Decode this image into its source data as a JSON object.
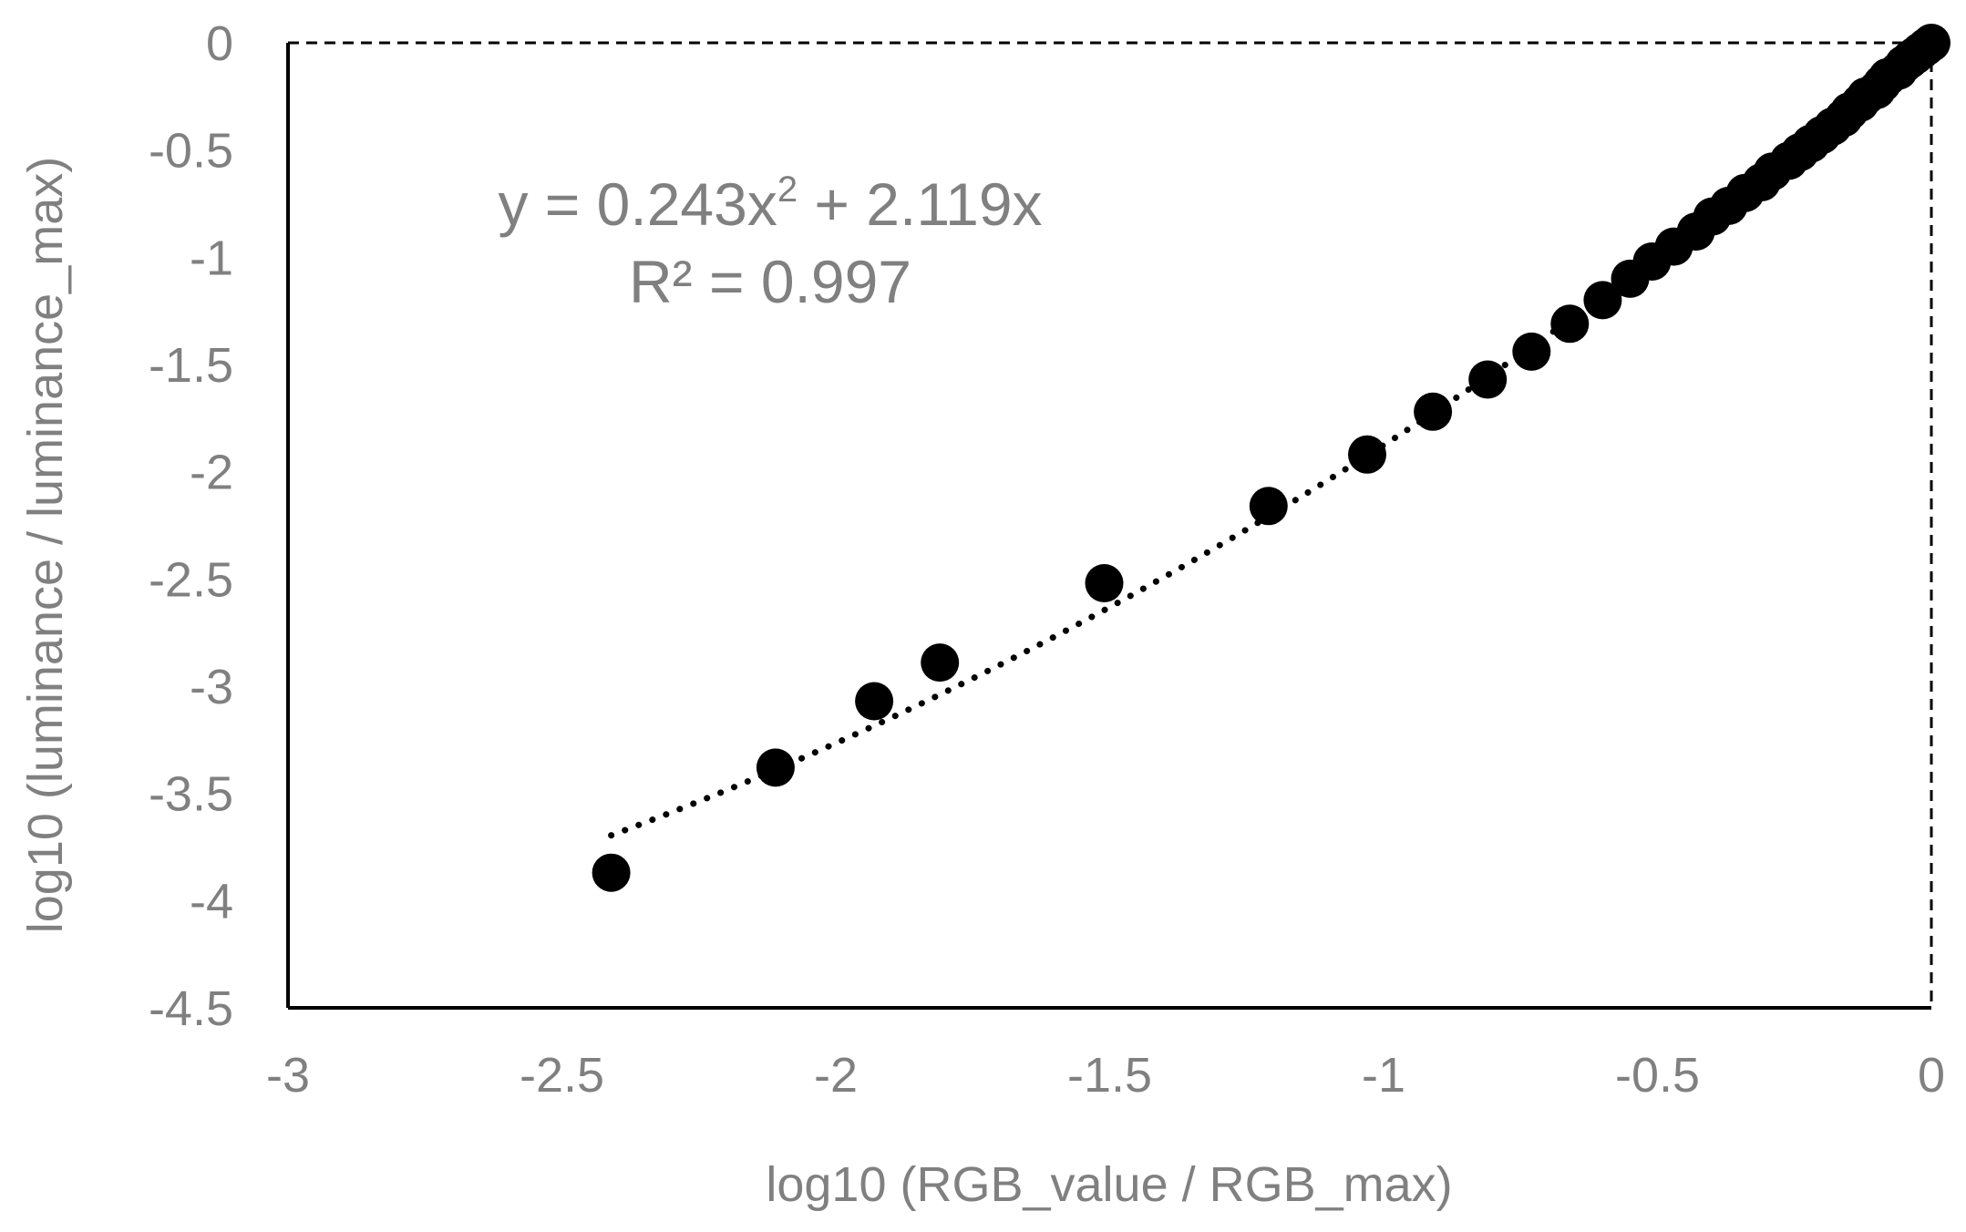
{
  "chart_data": {
    "type": "scatter",
    "title": "",
    "xlabel": "log10 (RGB_value / RGB_max)",
    "ylabel": "log10 (luminance / luminance_max)",
    "xlim": [
      -3,
      0
    ],
    "ylim": [
      -4.5,
      0
    ],
    "x_ticks": [
      "-3",
      "-2.5",
      "-2",
      "-1.5",
      "-1",
      "-0.5",
      "0"
    ],
    "y_ticks": [
      "0",
      "-0.5",
      "-1",
      "-1.5",
      "-2",
      "-2.5",
      "-3",
      "-3.5",
      "-4",
      "-4.5"
    ],
    "grid": false,
    "legend": "none",
    "colors": {
      "points": "#000000",
      "trendline": "#000000",
      "axis": "#000000",
      "text": "#808080"
    },
    "series": [
      {
        "points": [
          [
            -2.41,
            -3.87
          ],
          [
            -2.11,
            -3.38
          ],
          [
            -1.93,
            -3.07
          ],
          [
            -1.81,
            -2.89
          ],
          [
            -1.51,
            -2.52
          ],
          [
            -1.21,
            -2.16
          ],
          [
            -1.03,
            -1.92
          ],
          [
            -0.91,
            -1.72
          ],
          [
            -0.81,
            -1.57
          ],
          [
            -0.73,
            -1.44
          ],
          [
            -0.66,
            -1.31
          ],
          [
            -0.6,
            -1.2
          ],
          [
            -0.55,
            -1.1
          ],
          [
            -0.51,
            -1.02
          ],
          [
            -0.47,
            -0.95
          ],
          [
            -0.43,
            -0.88
          ],
          [
            -0.4,
            -0.81
          ],
          [
            -0.37,
            -0.76
          ],
          [
            -0.34,
            -0.7
          ],
          [
            -0.31,
            -0.65
          ],
          [
            -0.29,
            -0.6
          ],
          [
            -0.26,
            -0.55
          ],
          [
            -0.24,
            -0.51
          ],
          [
            -0.22,
            -0.47
          ],
          [
            -0.2,
            -0.43
          ],
          [
            -0.18,
            -0.39
          ],
          [
            -0.16,
            -0.35
          ],
          [
            -0.15,
            -0.32
          ],
          [
            -0.13,
            -0.28
          ],
          [
            -0.12,
            -0.25
          ],
          [
            -0.1,
            -0.22
          ],
          [
            -0.09,
            -0.19
          ],
          [
            -0.08,
            -0.16
          ],
          [
            -0.06,
            -0.13
          ],
          [
            -0.05,
            -0.1
          ],
          [
            -0.04,
            -0.08
          ],
          [
            -0.03,
            -0.06
          ],
          [
            -0.02,
            -0.04
          ],
          [
            -0.01,
            -0.02
          ],
          [
            0.0,
            0.0
          ]
        ]
      }
    ],
    "trendline": {
      "type": "polynomial",
      "style": "dotted",
      "a": 0.243,
      "b": 2.119,
      "c": 0,
      "x_range": [
        -2.41,
        0
      ]
    },
    "annotations": {
      "equation_prefix": "y = 0.243x",
      "equation_exponent": "2",
      "equation_suffix": " + 2.119x",
      "r_squared": "R² = 0.997"
    }
  }
}
